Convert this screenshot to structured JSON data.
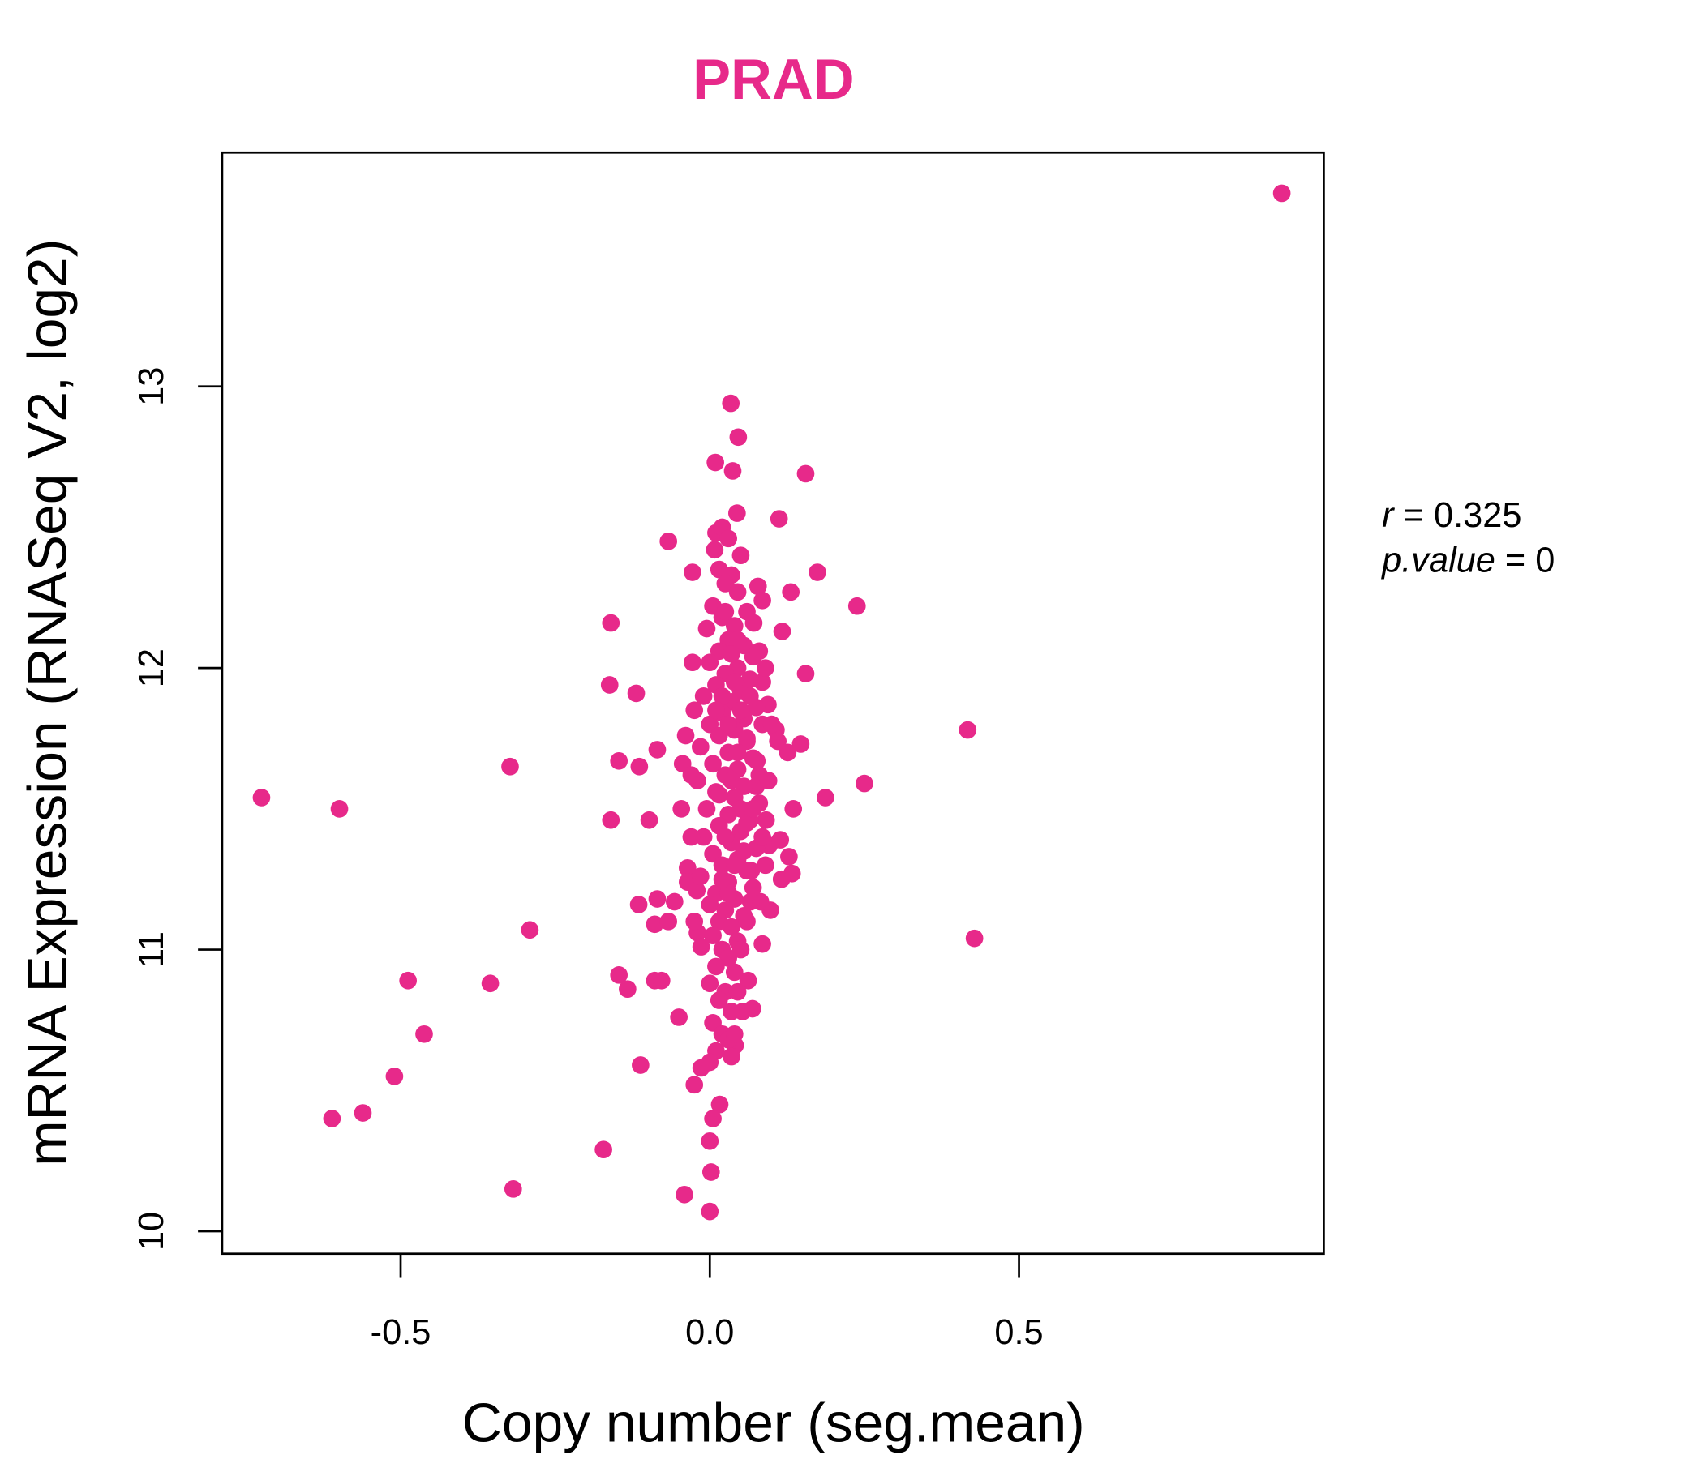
{
  "chart_data": {
    "type": "scatter",
    "title": "PRAD",
    "xlabel": "Copy number (seg.mean)",
    "ylabel": "mRNA Expression (RNASeq V2, log2)",
    "xlim": [
      -0.79,
      0.99
    ],
    "ylim": [
      9.92,
      13.83
    ],
    "x_ticks": [
      -0.5,
      0.0,
      0.5
    ],
    "x_tick_labels": [
      "-0.5",
      "0.0",
      "0.5"
    ],
    "y_ticks": [
      10,
      11,
      12,
      13
    ],
    "y_tick_labels": [
      "10",
      "11",
      "12",
      "13"
    ],
    "grid": false,
    "point_color": "#E7298A",
    "annotation": {
      "r_label": "r",
      "r_value": "0.325",
      "p_label": "p.value",
      "p_value": "0"
    },
    "points": [
      [
        0.925,
        13.686
      ],
      [
        0.034,
        12.94
      ],
      [
        0.046,
        12.82
      ],
      [
        0.009,
        12.73
      ],
      [
        0.037,
        12.7
      ],
      [
        0.155,
        12.69
      ],
      [
        0.044,
        12.55
      ],
      [
        0.112,
        12.53
      ],
      [
        -0.067,
        12.45
      ],
      [
        -0.028,
        12.34
      ],
      [
        0.174,
        12.34
      ],
      [
        0.238,
        12.22
      ],
      [
        0.131,
        12.27
      ],
      [
        -0.16,
        12.16
      ],
      [
        0.117,
        12.13
      ],
      [
        -0.028,
        12.02
      ],
      [
        0.155,
        11.98
      ],
      [
        -0.162,
        11.94
      ],
      [
        -0.119,
        11.91
      ],
      [
        0.417,
        11.78
      ],
      [
        -0.323,
        11.65
      ],
      [
        -0.147,
        11.67
      ],
      [
        -0.114,
        11.65
      ],
      [
        -0.085,
        11.71
      ],
      [
        -0.725,
        11.54
      ],
      [
        -0.599,
        11.5
      ],
      [
        0.25,
        11.59
      ],
      [
        0.187,
        11.54
      ],
      [
        -0.16,
        11.46
      ],
      [
        -0.098,
        11.46
      ],
      [
        0.147,
        11.73
      ],
      [
        0.126,
        11.7
      ],
      [
        0.135,
        11.5
      ],
      [
        0.128,
        11.33
      ],
      [
        0.133,
        11.27
      ],
      [
        -0.115,
        11.16
      ],
      [
        -0.085,
        11.18
      ],
      [
        -0.057,
        11.17
      ],
      [
        -0.089,
        11.09
      ],
      [
        -0.067,
        11.1
      ],
      [
        -0.291,
        11.07
      ],
      [
        0.428,
        11.04
      ],
      [
        0.085,
        11.02
      ],
      [
        0.098,
        11.14
      ],
      [
        -0.488,
        10.89
      ],
      [
        -0.355,
        10.88
      ],
      [
        -0.147,
        10.91
      ],
      [
        -0.133,
        10.86
      ],
      [
        -0.089,
        10.89
      ],
      [
        -0.078,
        10.89
      ],
      [
        0.062,
        10.89
      ],
      [
        0.069,
        10.79
      ],
      [
        -0.05,
        10.76
      ],
      [
        -0.462,
        10.7
      ],
      [
        -0.112,
        10.59
      ],
      [
        -0.51,
        10.55
      ],
      [
        -0.025,
        10.52
      ],
      [
        -0.014,
        10.58
      ],
      [
        0.016,
        10.45
      ],
      [
        0.005,
        10.4
      ],
      [
        -0.561,
        10.42
      ],
      [
        -0.611,
        10.4
      ],
      [
        -0.172,
        10.29
      ],
      [
        0.0,
        10.32
      ],
      [
        0.002,
        10.21
      ],
      [
        -0.318,
        10.15
      ],
      [
        -0.041,
        10.13
      ],
      [
        0.0,
        10.07
      ],
      [
        0.041,
        10.66
      ],
      [
        0.053,
        10.78
      ],
      [
        0.096,
        11.37
      ],
      [
        0.114,
        11.39
      ],
      [
        0.116,
        11.25
      ],
      [
        0.091,
        11.46
      ],
      [
        0.076,
        11.67
      ],
      [
        0.107,
        11.78
      ],
      [
        0.078,
        12.29
      ],
      [
        0.085,
        12.24
      ],
      [
        0.071,
        12.16
      ],
      [
        0.08,
        12.06
      ],
      [
        0.094,
        11.87
      ],
      [
        0.075,
        11.58
      ],
      [
        0.067,
        11.28
      ],
      [
        0.066,
        11.17
      ],
      [
        0.082,
        11.17
      ],
      [
        -0.039,
        11.76
      ],
      [
        -0.044,
        11.66
      ],
      [
        -0.046,
        11.5
      ],
      [
        -0.036,
        11.29
      ],
      [
        -0.036,
        11.24
      ],
      [
        -0.021,
        11.21
      ],
      [
        -0.02,
        11.06
      ],
      [
        -0.014,
        11.01
      ],
      [
        0.01,
        12.48
      ],
      [
        0.02,
        12.5
      ],
      [
        0.03,
        12.46
      ],
      [
        0.008,
        12.42
      ],
      [
        0.05,
        12.4
      ],
      [
        0.015,
        12.35
      ],
      [
        0.035,
        12.33
      ],
      [
        0.025,
        12.3
      ],
      [
        0.045,
        12.27
      ],
      [
        0.005,
        12.22
      ],
      [
        0.06,
        12.2
      ],
      [
        0.02,
        12.18
      ],
      [
        0.04,
        12.15
      ],
      [
        -0.005,
        12.14
      ],
      [
        0.03,
        12.1
      ],
      [
        0.055,
        12.08
      ],
      [
        0.015,
        12.06
      ],
      [
        0.07,
        12.04
      ],
      [
        0.0,
        12.02
      ],
      [
        0.045,
        12.0
      ],
      [
        0.025,
        11.98
      ],
      [
        0.065,
        11.96
      ],
      [
        0.01,
        11.94
      ],
      [
        0.05,
        11.92
      ],
      [
        -0.01,
        11.9
      ],
      [
        0.035,
        11.88
      ],
      [
        0.075,
        11.86
      ],
      [
        0.02,
        11.84
      ],
      [
        0.055,
        11.82
      ],
      [
        0.0,
        11.8
      ],
      [
        0.04,
        11.78
      ],
      [
        0.085,
        11.8
      ],
      [
        0.015,
        11.76
      ],
      [
        0.06,
        11.74
      ],
      [
        -0.015,
        11.72
      ],
      [
        0.03,
        11.7
      ],
      [
        0.07,
        11.68
      ],
      [
        0.005,
        11.66
      ],
      [
        0.045,
        11.64
      ],
      [
        0.025,
        11.62
      ],
      [
        -0.02,
        11.6
      ],
      [
        0.055,
        11.58
      ],
      [
        0.01,
        11.56
      ],
      [
        0.04,
        11.54
      ],
      [
        0.08,
        11.52
      ],
      [
        -0.005,
        11.5
      ],
      [
        0.03,
        11.48
      ],
      [
        0.065,
        11.46
      ],
      [
        0.015,
        11.44
      ],
      [
        0.05,
        11.42
      ],
      [
        -0.01,
        11.4
      ],
      [
        0.035,
        11.38
      ],
      [
        0.075,
        11.36
      ],
      [
        0.005,
        11.34
      ],
      [
        0.045,
        11.32
      ],
      [
        0.02,
        11.3
      ],
      [
        0.06,
        11.28
      ],
      [
        -0.015,
        11.26
      ],
      [
        0.03,
        11.24
      ],
      [
        0.07,
        11.22
      ],
      [
        0.01,
        11.2
      ],
      [
        0.04,
        11.18
      ],
      [
        0.0,
        11.16
      ],
      [
        0.025,
        11.14
      ],
      [
        0.055,
        11.12
      ],
      [
        0.015,
        11.1
      ],
      [
        0.035,
        11.08
      ],
      [
        0.005,
        11.05
      ],
      [
        0.045,
        11.03
      ],
      [
        0.02,
        11.0
      ],
      [
        0.03,
        10.97
      ],
      [
        0.01,
        10.94
      ],
      [
        0.04,
        10.92
      ],
      [
        0.0,
        10.88
      ],
      [
        0.025,
        10.85
      ],
      [
        0.015,
        10.82
      ],
      [
        0.035,
        10.78
      ],
      [
        0.005,
        10.74
      ],
      [
        0.02,
        10.7
      ],
      [
        0.03,
        10.68
      ],
      [
        0.01,
        10.64
      ],
      [
        0.0,
        10.6
      ],
      [
        0.04,
        11.95
      ],
      [
        0.05,
        11.85
      ],
      [
        0.06,
        11.75
      ],
      [
        0.02,
        11.9
      ],
      [
        0.03,
        11.8
      ],
      [
        0.045,
        11.7
      ],
      [
        0.01,
        11.85
      ],
      [
        0.035,
        11.6
      ],
      [
        0.05,
        11.5
      ],
      [
        0.025,
        11.4
      ],
      [
        0.06,
        11.45
      ],
      [
        0.015,
        11.55
      ],
      [
        0.04,
        11.3
      ],
      [
        0.055,
        11.35
      ],
      [
        0.03,
        11.2
      ],
      [
        0.02,
        11.25
      ],
      [
        0.045,
        12.1
      ],
      [
        0.035,
        12.05
      ],
      [
        0.025,
        12.2
      ],
      [
        0.065,
        11.9
      ],
      [
        0.085,
        11.95
      ],
      [
        0.09,
        12.0
      ],
      [
        0.08,
        11.62
      ],
      [
        0.085,
        11.4
      ],
      [
        0.07,
        11.5
      ],
      [
        -0.025,
        11.85
      ],
      [
        -0.03,
        11.62
      ],
      [
        -0.03,
        11.4
      ],
      [
        -0.025,
        11.1
      ],
      [
        0.06,
        11.1
      ],
      [
        0.05,
        11.0
      ],
      [
        0.045,
        10.85
      ],
      [
        0.04,
        10.7
      ],
      [
        0.035,
        10.62
      ],
      [
        0.095,
        11.6
      ],
      [
        0.1,
        11.8
      ],
      [
        0.11,
        11.74
      ],
      [
        0.09,
        11.3
      ]
    ]
  }
}
